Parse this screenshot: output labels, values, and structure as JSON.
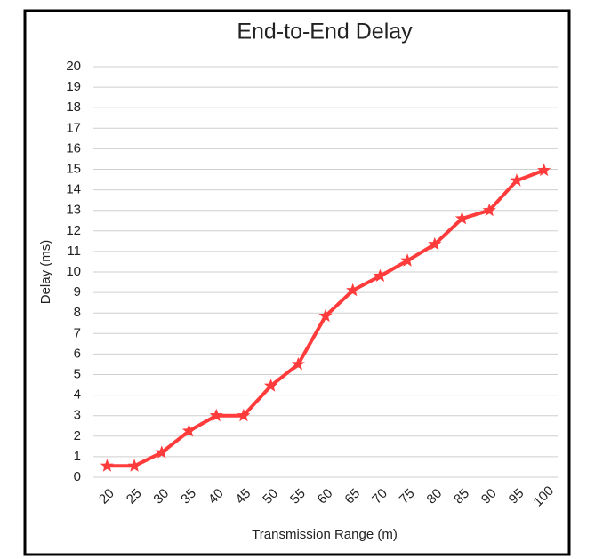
{
  "chart_data": {
    "type": "line",
    "title": "End-to-End Delay",
    "x_label": "Transmission Range (m)",
    "y_label": "Delay (ms)",
    "categories": [
      "20",
      "25",
      "30",
      "35",
      "40",
      "45",
      "50",
      "55",
      "60",
      "65",
      "70",
      "75",
      "80",
      "85",
      "90",
      "95",
      "100"
    ],
    "values": [
      0.55,
      0.55,
      1.2,
      2.25,
      3,
      3,
      4.45,
      5.5,
      7.85,
      9.1,
      9.8,
      10.55,
      11.35,
      12.6,
      13,
      14.45,
      14.95
    ],
    "color": "#ff3b3b",
    "marker": "star",
    "ylim": [
      0,
      20
    ],
    "yticks": [
      0,
      1,
      2,
      3,
      4,
      5,
      6,
      7,
      8,
      9,
      10,
      11,
      12,
      13,
      14,
      15,
      16,
      17,
      18,
      19,
      20
    ],
    "grid": true
  }
}
